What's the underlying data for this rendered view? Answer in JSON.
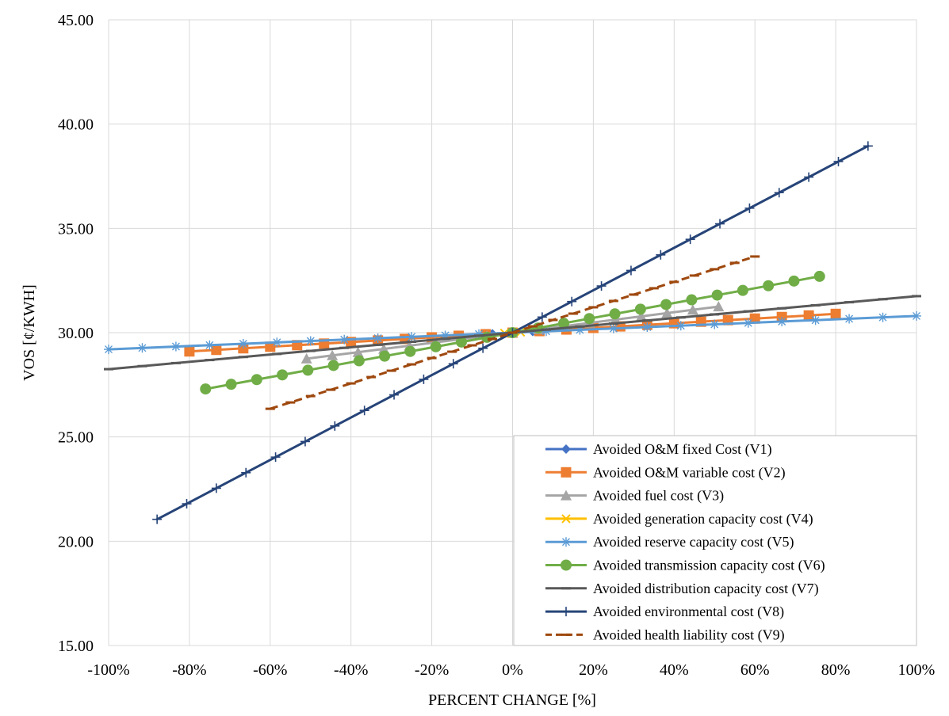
{
  "chart_data": {
    "type": "line",
    "title": "",
    "xlabel": "PERCENT CHANGE [%]",
    "ylabel": "VOS [¢/KWH]",
    "xlim": [
      -100,
      100
    ],
    "ylim": [
      15,
      45
    ],
    "x_ticks": [
      -100,
      -80,
      -60,
      -40,
      -20,
      0,
      20,
      40,
      60,
      80,
      100
    ],
    "x_tick_labels": [
      "-100%",
      "-80%",
      "-60%",
      "-40%",
      "-20%",
      "0%",
      "20%",
      "40%",
      "60%",
      "80%",
      "100%"
    ],
    "y_ticks": [
      15,
      20,
      25,
      30,
      35,
      40,
      45
    ],
    "y_tick_labels": [
      "15.00",
      "20.00",
      "25.00",
      "30.00",
      "35.00",
      "40.00",
      "45.00"
    ],
    "grid": true,
    "legend_position": "bottom-right",
    "series": [
      {
        "name": "Avoided O&M fixed Cost (V1)",
        "color": "#4472C4",
        "marker": "diamond",
        "dash": "solid",
        "x_start": -5,
        "x_end": 5,
        "y_start": 29.95,
        "y_end": 30.05,
        "n_points": 2
      },
      {
        "name": "Avoided O&M variable cost (V2)",
        "color": "#ED7D31",
        "marker": "square",
        "dash": "solid",
        "x_start": -80,
        "x_end": 80,
        "y_start": 29.1,
        "y_end": 30.9,
        "n_points": 25
      },
      {
        "name": "Avoided fuel cost (V3)",
        "color": "#A5A5A5",
        "marker": "triangle",
        "dash": "solid",
        "x_start": -51,
        "x_end": 51,
        "y_start": 28.75,
        "y_end": 31.25,
        "n_points": 17
      },
      {
        "name": "Avoided generation capacity cost (V4)",
        "color": "#FFC000",
        "marker": "x",
        "dash": "solid",
        "x_start": -2,
        "x_end": 2,
        "y_start": 29.98,
        "y_end": 30.02,
        "n_points": 2
      },
      {
        "name": "Avoided reserve capacity cost (V5)",
        "color": "#5B9BD5",
        "marker": "star",
        "dash": "solid",
        "x_start": -100,
        "x_end": 100,
        "y_start": 29.2,
        "y_end": 30.8,
        "n_points": 25
      },
      {
        "name": "Avoided transmission capacity cost (V6)",
        "color": "#70AD47",
        "marker": "circle",
        "dash": "solid",
        "x_start": -76,
        "x_end": 76,
        "y_start": 27.3,
        "y_end": 32.7,
        "n_points": 25
      },
      {
        "name": "Avoided distribution capacity cost (V7)",
        "color": "#595959",
        "marker": "dash",
        "dash": "solid",
        "x_start": -100,
        "x_end": 100,
        "y_start": 28.25,
        "y_end": 31.75,
        "n_points": 25
      },
      {
        "name": "Avoided environmental cost (V8)",
        "color": "#264478",
        "marker": "plus",
        "dash": "solid",
        "x_start": -88,
        "x_end": 88,
        "y_start": 21.05,
        "y_end": 38.95,
        "n_points": 25
      },
      {
        "name": "Avoided health liability cost (V9)",
        "color": "#9E480E",
        "marker": "dash",
        "dash": "dashed",
        "x_start": -60,
        "x_end": 60,
        "y_start": 26.35,
        "y_end": 33.65,
        "n_points": 25
      }
    ]
  }
}
